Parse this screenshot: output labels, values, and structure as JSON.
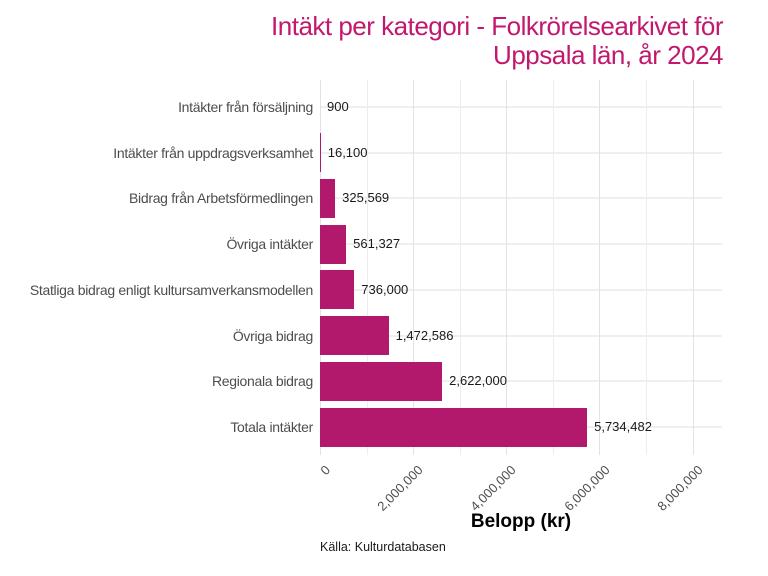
{
  "chart_data": {
    "type": "bar",
    "orientation": "horizontal",
    "title_lines": [
      "Intäkt per kategori - Folkrörelsearkivet för",
      "Uppsala län, år 2024"
    ],
    "categories": [
      "Intäkter från försäljning",
      "Intäkter från uppdragsverksamhet",
      "Bidrag från Arbetsförmedlingen",
      "Övriga intäkter",
      "Statliga bidrag enligt kultursamverkansmodellen",
      "Övriga bidrag",
      "Regionala bidrag",
      "Totala intäkter"
    ],
    "values": [
      900,
      16100,
      325569,
      561327,
      736000,
      1472586,
      2622000,
      5734482
    ],
    "value_labels": [
      "900",
      "16,100",
      "325,569",
      "561,327",
      "736,000",
      "1,472,586",
      "2,622,000",
      "5,734,482"
    ],
    "xlabel": "Belopp (kr)",
    "caption": "Källa: Kulturdatabasen",
    "x_ticks": [
      {
        "value": 0,
        "label": "0"
      },
      {
        "value": 2000000,
        "label": "2,000,000"
      },
      {
        "value": 4000000,
        "label": "4,000,000"
      },
      {
        "value": 6000000,
        "label": "6,000,000"
      },
      {
        "value": 8000000,
        "label": "8,000,000"
      }
    ],
    "minor_tick_values": [
      1000000,
      3000000,
      5000000,
      7000000
    ],
    "xlim": [
      0,
      8630000
    ],
    "grid": true,
    "legend": "none",
    "colors": {
      "bar": "#B2186B",
      "title": "#C2186E",
      "grid_major": "#E2E2E2",
      "grid_minor": "#EDEDED",
      "grid_row": "#EFEFEF",
      "axis_text": "#4d4d4d",
      "value_text": "#1a1a1a"
    }
  }
}
